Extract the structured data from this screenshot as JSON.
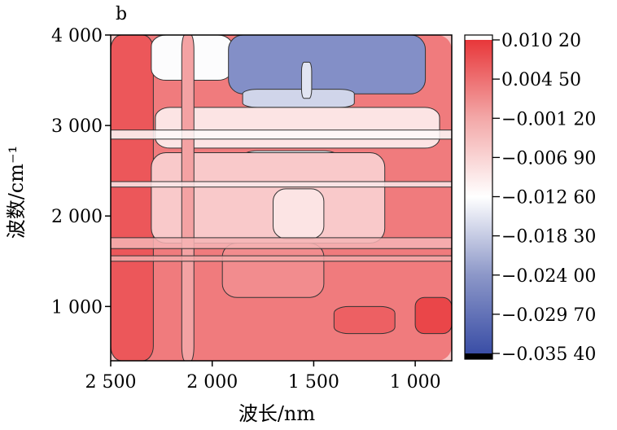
{
  "chart_data": {
    "type": "heatmap",
    "panel_label": "b",
    "xlabel": "波长/nm",
    "ylabel": "波数/cm⁻¹",
    "xlim": [
      2500,
      820
    ],
    "ylim": [
      400,
      4000
    ],
    "xticks": [
      2500,
      2000,
      1500,
      1000
    ],
    "xtick_labels": [
      "2 500",
      "2 000",
      "1 500",
      "1 000"
    ],
    "yticks": [
      1000,
      2000,
      3000,
      4000
    ],
    "ytick_labels": [
      "1 000",
      "2 000",
      "3 000",
      "4 000"
    ],
    "colorbar": {
      "min": -0.0354,
      "max": 0.0102,
      "ticks": [
        0.0102,
        0.0045,
        -0.0012,
        -0.0069,
        -0.0126,
        -0.0183,
        -0.024,
        -0.0297,
        -0.0354
      ],
      "tick_labels": [
        "0.010 20",
        "0.004 50",
        "−0.001 20",
        "−0.006 90",
        "−0.012 60",
        "−0.018 30",
        "−0.024 00",
        "−0.029 70",
        "−0.035 40"
      ],
      "colors": {
        "low": "#3a4ea6",
        "mid": "#ffffff",
        "high": "#e8373a",
        "overflow_high": "#ffffff",
        "overflow_low": "#000000"
      }
    },
    "regions": [
      {
        "x": [
          2500,
          820
        ],
        "y": [
          400,
          4000
        ],
        "value": 0.0025
      },
      {
        "x": [
          2500,
          2290
        ],
        "y": [
          400,
          4000
        ],
        "value": 0.0065
      },
      {
        "x": [
          2300,
          1900
        ],
        "y": [
          3500,
          4000
        ],
        "value": -0.013
      },
      {
        "x": [
          1920,
          950
        ],
        "y": [
          3350,
          4000
        ],
        "value": -0.027
      },
      {
        "x": [
          1850,
          1300
        ],
        "y": [
          3200,
          3400
        ],
        "value": -0.018
      },
      {
        "x": [
          2280,
          880
        ],
        "y": [
          2750,
          3200
        ],
        "value": -0.0095
      },
      {
        "x": [
          1850,
          1380
        ],
        "y": [
          2480,
          2720
        ],
        "value": -0.014
      },
      {
        "x": [
          2300,
          1150
        ],
        "y": [
          1700,
          2700
        ],
        "value": -0.0065
      },
      {
        "x": [
          1700,
          1450
        ],
        "y": [
          1750,
          2300
        ],
        "value": -0.0095
      },
      {
        "x": [
          1950,
          1450
        ],
        "y": [
          1100,
          1700
        ],
        "value": 0.0005
      },
      {
        "x": [
          1000,
          820
        ],
        "y": [
          700,
          1100
        ],
        "value": 0.0085
      },
      {
        "x": [
          1400,
          1100
        ],
        "y": [
          700,
          1000
        ],
        "value": 0.0055
      },
      {
        "x": [
          2150,
          2090
        ],
        "y": [
          400,
          4000
        ],
        "value": -0.002
      },
      {
        "x": [
          1560,
          1510
        ],
        "y": [
          3300,
          3700
        ],
        "value": -0.016
      }
    ],
    "bands": [
      {
        "y": [
          2850,
          2950
        ],
        "value": -0.012
      },
      {
        "y": [
          2320,
          2380
        ],
        "value": -0.01
      },
      {
        "y": [
          1640,
          1760
        ],
        "value": -0.004
      },
      {
        "y": [
          1500,
          1560
        ],
        "value": -0.003
      }
    ]
  }
}
